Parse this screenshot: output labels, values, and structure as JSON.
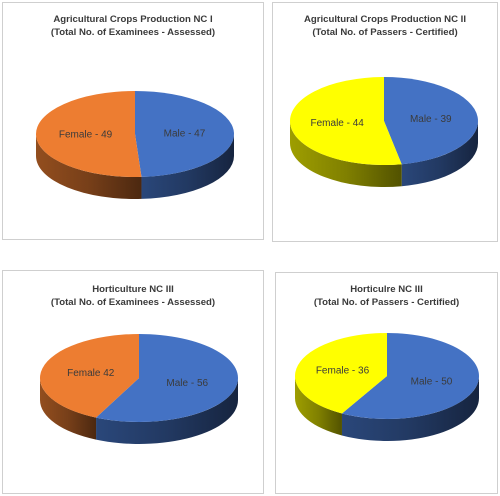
{
  "chart_data": [
    {
      "type": "pie",
      "title": [
        "Agricultural Crops Production NC I",
        "(Total No. of Examinees - Assessed)"
      ],
      "slices": [
        {
          "label": "Male - 47",
          "value": 47,
          "color": "#4472C4"
        },
        {
          "label": "Female - 49",
          "value": 49,
          "color": "#ED7D31"
        }
      ]
    },
    {
      "type": "pie",
      "title": [
        "Agricultural Crops Production NC II",
        "(Total No. of Passers - Certified)"
      ],
      "slices": [
        {
          "label": "Male - 39",
          "value": 39,
          "color": "#4472C4"
        },
        {
          "label": "Female - 44",
          "value": 44,
          "color": "#FFFF00"
        }
      ]
    },
    {
      "type": "pie",
      "title": [
        "Horticulture NC III",
        "(Total No. of Examinees - Assessed)"
      ],
      "slices": [
        {
          "label": "Male - 56",
          "value": 56,
          "color": "#4472C4"
        },
        {
          "label": "Female 42",
          "value": 42,
          "color": "#ED7D31"
        }
      ]
    },
    {
      "type": "pie",
      "title": [
        "Horticulre NC III",
        "(Total No. of Passers - Certified)"
      ],
      "slices": [
        {
          "label": "Male - 50",
          "value": 50,
          "color": "#4472C4"
        },
        {
          "label": "Female - 36",
          "value": 36,
          "color": "#FFFF00"
        }
      ]
    }
  ]
}
